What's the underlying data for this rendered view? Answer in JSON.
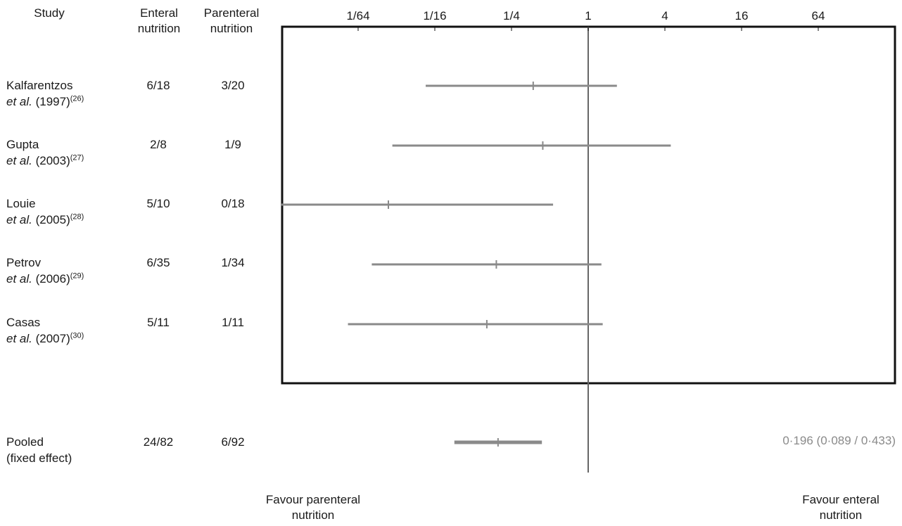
{
  "headers": {
    "study": "Study",
    "enteral_1": "Enteral",
    "enteral_2": "nutrition",
    "parenteral_1": "Parenteral",
    "parenteral_2": "nutrition"
  },
  "studies": [
    {
      "name": "Kalfarentzos",
      "etal": "et al.",
      "year": "(1997)",
      "ref": "(26)",
      "enteral": "6/18",
      "parenteral": "3/20"
    },
    {
      "name": "Gupta",
      "etal": "et al.",
      "year": "(2003)",
      "ref": "(27)",
      "enteral": "2/8",
      "parenteral": "1/9"
    },
    {
      "name": "Louie",
      "etal": "et al.",
      "year": "(2005)",
      "ref": "(28)",
      "enteral": "5/10",
      "parenteral": "0/18"
    },
    {
      "name": "Petrov",
      "etal": "et al.",
      "year": "(2006)",
      "ref": "(29)",
      "enteral": "6/35",
      "parenteral": "1/34"
    },
    {
      "name": "Casas",
      "etal": "et al.",
      "year": "(2007)",
      "ref": "(30)",
      "enteral": "5/11",
      "parenteral": "1/11"
    }
  ],
  "pooled": {
    "label_1": "Pooled",
    "label_2": "(fixed effect)",
    "enteral": "24/82",
    "parenteral": "6/92",
    "value_text": "0·196 (0·089 / 0·433)"
  },
  "footer": {
    "left_1": "Favour parenteral",
    "left_2": "nutrition",
    "right_1": "Favour enteral",
    "right_2": "nutrition"
  },
  "colors": {
    "ci_line": "#8a8a8a",
    "frame": "#111111",
    "ref_line": "#666666"
  },
  "chart_data": {
    "type": "forest",
    "x_scale": "log2",
    "x_ticks": [
      0.015625,
      0.0625,
      0.25,
      1,
      4,
      16,
      64
    ],
    "x_tick_labels": [
      "1/64",
      "1/16",
      "1/4",
      "1",
      "4",
      "16",
      "64"
    ],
    "xlim": [
      0.0039,
      256
    ],
    "reference_line": 1,
    "rows": [
      {
        "label": "Kalfarentzos et al. (1997)",
        "estimate": 0.37,
        "ci": [
          0.053,
          1.68
        ]
      },
      {
        "label": "Gupta et al. (2003)",
        "estimate": 0.44,
        "ci": [
          0.029,
          4.45
        ]
      },
      {
        "label": "Louie et al. (2005)",
        "estimate": 0.027,
        "ci": [
          0.0039,
          0.53
        ]
      },
      {
        "label": "Petrov et al. (2006)",
        "estimate": 0.19,
        "ci": [
          0.02,
          1.27
        ]
      },
      {
        "label": "Casas et al. (2007)",
        "estimate": 0.16,
        "ci": [
          0.013,
          1.3
        ]
      },
      {
        "label": "Pooled (fixed effect)",
        "estimate": 0.196,
        "ci": [
          0.089,
          0.433
        ],
        "pooled": true
      }
    ]
  }
}
